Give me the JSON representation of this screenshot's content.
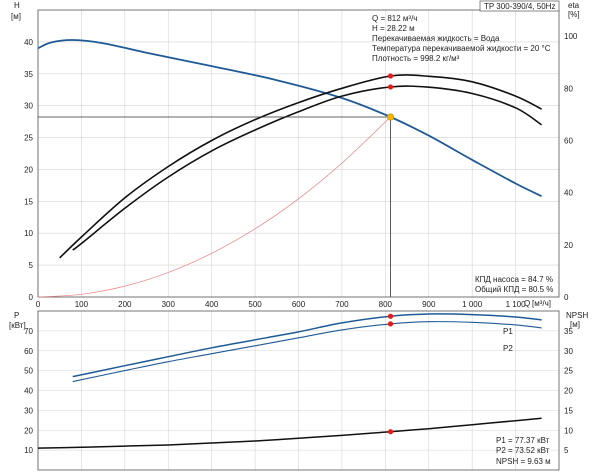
{
  "header": {
    "model": "TP 300-390/4, 50Hz"
  },
  "chart_data": [
    {
      "type": "line",
      "title": "",
      "xlabel": "Q [м³/ч]",
      "x_unit_label": "Q",
      "x_unit_sub": "[м³/ч]",
      "ylabel_left": "H",
      "ylabel_left_unit": "[м]",
      "ylabel_right": "eta",
      "ylabel_right_unit": "[%]",
      "xlim": [
        0,
        1200
      ],
      "ylim": [
        0,
        45
      ],
      "ylim_right": [
        0,
        110
      ],
      "x_ticks": [
        0,
        100,
        200,
        300,
        400,
        500,
        600,
        700,
        800,
        900,
        1000,
        1100
      ],
      "x_tick_labels": [
        "0",
        "100",
        "200",
        "300",
        "400",
        "500",
        "600",
        "700",
        "800",
        "900",
        "1 000",
        "1 100"
      ],
      "y_ticks": [
        0,
        5,
        10,
        15,
        20,
        25,
        30,
        35,
        40
      ],
      "y_right_ticks": [
        0,
        20,
        40,
        60,
        80,
        100
      ],
      "grid": true,
      "series": [
        {
          "name": "H",
          "axis": "left",
          "color": "#1f5a96",
          "x": [
            0,
            30,
            80,
            150,
            250,
            400,
            550,
            700,
            812,
            900,
            1000,
            1100,
            1160
          ],
          "y": [
            39.0,
            39.9,
            40.3,
            39.8,
            38.3,
            36.2,
            34.0,
            31.2,
            28.22,
            25.3,
            21.5,
            17.8,
            15.8
          ]
        },
        {
          "name": "КПД насоса",
          "axis": "right",
          "color": "#111111",
          "x": [
            50,
            100,
            200,
            300,
            400,
            500,
            600,
            700,
            812,
            900,
            1000,
            1100,
            1160
          ],
          "y": [
            15,
            23,
            38,
            50,
            60,
            68,
            74.5,
            80,
            84.7,
            84.6,
            82.5,
            77,
            72
          ]
        },
        {
          "name": "Общий КПД",
          "axis": "right",
          "color": "#111111",
          "x": [
            80,
            100,
            200,
            300,
            400,
            500,
            600,
            700,
            812,
            900,
            1000,
            1100,
            1160
          ],
          "y": [
            18,
            20.5,
            34,
            46,
            56,
            64,
            71,
            77,
            80.5,
            80.4,
            78,
            72.5,
            66
          ]
        },
        {
          "name": "system",
          "axis": "left",
          "color": "#f08080",
          "x": [
            0,
            100,
            200,
            300,
            400,
            500,
            600,
            700,
            812
          ],
          "y": [
            0,
            0.43,
            1.71,
            3.85,
            6.85,
            10.7,
            15.4,
            21.0,
            28.22
          ]
        }
      ],
      "operating_point": {
        "q": 812,
        "h": 28.22,
        "eta_pump": 84.7,
        "eta_total": 80.5
      },
      "info_box": [
        "Q = 812 м³/ч",
        "H = 28.22 м",
        "Перекачиваемая жидкость = Вода",
        "Температура перекачиваемой жидкости = 20 °C",
        "Плотность = 998.2 кг/м³"
      ],
      "annotations": [
        "КПД насоса = 84.7 %",
        "Общий КПД = 80.5 %"
      ]
    },
    {
      "type": "line",
      "title": "",
      "ylabel_left": "P",
      "ylabel_left_unit": "[кВт]",
      "ylabel_right": "NPSH",
      "ylabel_right_unit": "[м]",
      "xlim": [
        0,
        1200
      ],
      "ylim": [
        0,
        80
      ],
      "ylim_right": [
        0,
        40
      ],
      "y_ticks": [
        10,
        20,
        30,
        40,
        50,
        60,
        70
      ],
      "y_right_ticks": [
        5,
        10,
        15,
        20,
        25,
        30,
        35
      ],
      "grid": true,
      "series": [
        {
          "name": "P1",
          "axis": "left",
          "color": "#1f5a96",
          "x": [
            80,
            200,
            300,
            400,
            500,
            600,
            700,
            812,
            900,
            1000,
            1100,
            1160
          ],
          "y": [
            47,
            52.5,
            57,
            61.5,
            65.5,
            69.5,
            74,
            77.37,
            78.5,
            78.2,
            77,
            75.5
          ]
        },
        {
          "name": "P2",
          "axis": "left",
          "color": "#1f5a96",
          "x": [
            80,
            200,
            300,
            400,
            500,
            600,
            700,
            812,
            900,
            1000,
            1100,
            1160
          ],
          "y": [
            44.5,
            50,
            54.5,
            58.5,
            62.5,
            66.5,
            70.5,
            73.52,
            74.6,
            74.3,
            73,
            71.5
          ]
        },
        {
          "name": "NPSH",
          "axis": "right",
          "color": "#111111",
          "x": [
            0,
            100,
            200,
            300,
            400,
            500,
            600,
            700,
            812,
            900,
            1000,
            1100,
            1160
          ],
          "y": [
            5.5,
            5.7,
            6.0,
            6.3,
            6.8,
            7.3,
            8.0,
            8.7,
            9.63,
            10.4,
            11.4,
            12.4,
            13.0
          ]
        }
      ],
      "operating_point": {
        "q": 812,
        "p1": 77.37,
        "p2": 73.52,
        "npsh": 9.63
      },
      "annotations": [
        "P1 = 77.37 кВт",
        "P2 = 73.52 кВт",
        "NPSH = 9.63 м"
      ]
    }
  ]
}
